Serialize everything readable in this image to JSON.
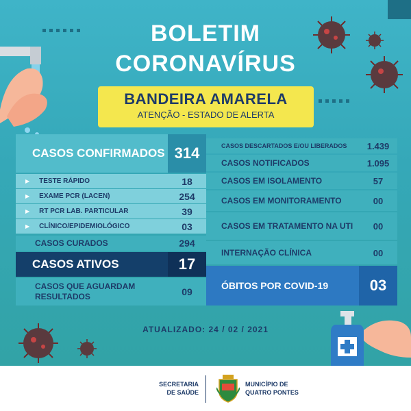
{
  "title": {
    "line1": "BOLETIM",
    "line2": "CORONAVÍRUS"
  },
  "flag": {
    "main": "BANDEIRA AMARELA",
    "sub": "ATENÇÃO - ESTADO DE ALERTA"
  },
  "left": {
    "confirmed": {
      "label": "CASOS CONFIRMADOS",
      "value": "314"
    },
    "breakdown": [
      {
        "label": "TESTE RÁPIDO",
        "value": "18"
      },
      {
        "label": "EXAME PCR (LACEN)",
        "value": "254"
      },
      {
        "label": "RT PCR LAB. PARTICULAR",
        "value": "39"
      },
      {
        "label": "CLÍNICO/EPIDEMIOLÓGICO",
        "value": "03"
      }
    ],
    "cured": {
      "label": "CASOS CURADOS",
      "value": "294"
    },
    "active": {
      "label": "CASOS ATIVOS",
      "value": "17"
    },
    "awaiting": {
      "label1": "CASOS QUE AGUARDAM",
      "label2": "RESULTADOS",
      "value": "09"
    }
  },
  "right": {
    "rows": [
      {
        "label": "CASOS DESCARTADOS E/OU LIBERADOS",
        "value": "1.439"
      },
      {
        "label": "CASOS NOTIFICADOS",
        "value": "1.095"
      },
      {
        "label": "CASOS EM ISOLAMENTO",
        "value": "57"
      },
      {
        "label": "CASOS EM MONITORAMENTO",
        "value": "00"
      },
      {
        "label": "CASOS EM TRATAMENTO NA UTI",
        "value": "00"
      },
      {
        "label": "INTERNAÇÃO CLÍNICA",
        "value": "00"
      }
    ],
    "deaths": {
      "label": "ÓBITOS POR COVID-19",
      "value": "03"
    }
  },
  "updated": "ATUALIZADO: 24 / 02 / 2021",
  "footer": {
    "dept1": "SECRETARIA",
    "dept2": "DE SAÚDE",
    "muni1": "MUNICÍPIO DE",
    "muni2": "QUATRO PONTES"
  },
  "icons": [
    "virus-icon",
    "hand-washing-icon",
    "sanitizer-icon",
    "coat-of-arms-icon"
  ],
  "colors": {
    "accent": "#f4e74e",
    "navy": "#1e3b68",
    "teal": "#3fb4c8",
    "blue": "#2d79c2"
  }
}
